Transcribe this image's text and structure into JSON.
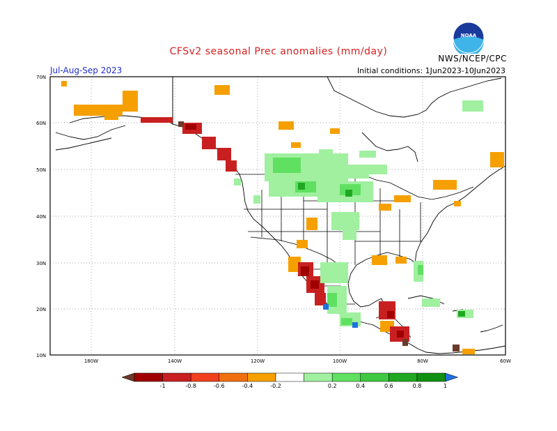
{
  "header": {
    "title": "CFSv2 seasonal Prec anomalies (mm/day)",
    "season": "Jul-Aug-Sep 2023",
    "initial_conditions": "Initial conditions: 1Jun2023-10Jun2023",
    "credit": "NWS/NCEP/CPC",
    "logo_text": "NOAA"
  },
  "map": {
    "lat_labels": [
      "70N",
      "60N",
      "50N",
      "40N",
      "30N",
      "20N",
      "10N"
    ],
    "lon_labels": [
      "180W",
      "140W",
      "120W",
      "100W",
      "80W",
      "60W"
    ]
  },
  "colorbar": {
    "labels": [
      "-1",
      "-0.8",
      "-0.6",
      "-0.4",
      "-0.2",
      "0.2",
      "0.4",
      "0.6",
      "0.8",
      "1"
    ],
    "colors": [
      "#6b3a28",
      "#a00000",
      "#c82020",
      "#f04020",
      "#f07010",
      "#f5a000",
      "#ffffff",
      "#a0f0a0",
      "#60e060",
      "#40c840",
      "#20a820",
      "#109010",
      "#2070e0"
    ]
  }
}
